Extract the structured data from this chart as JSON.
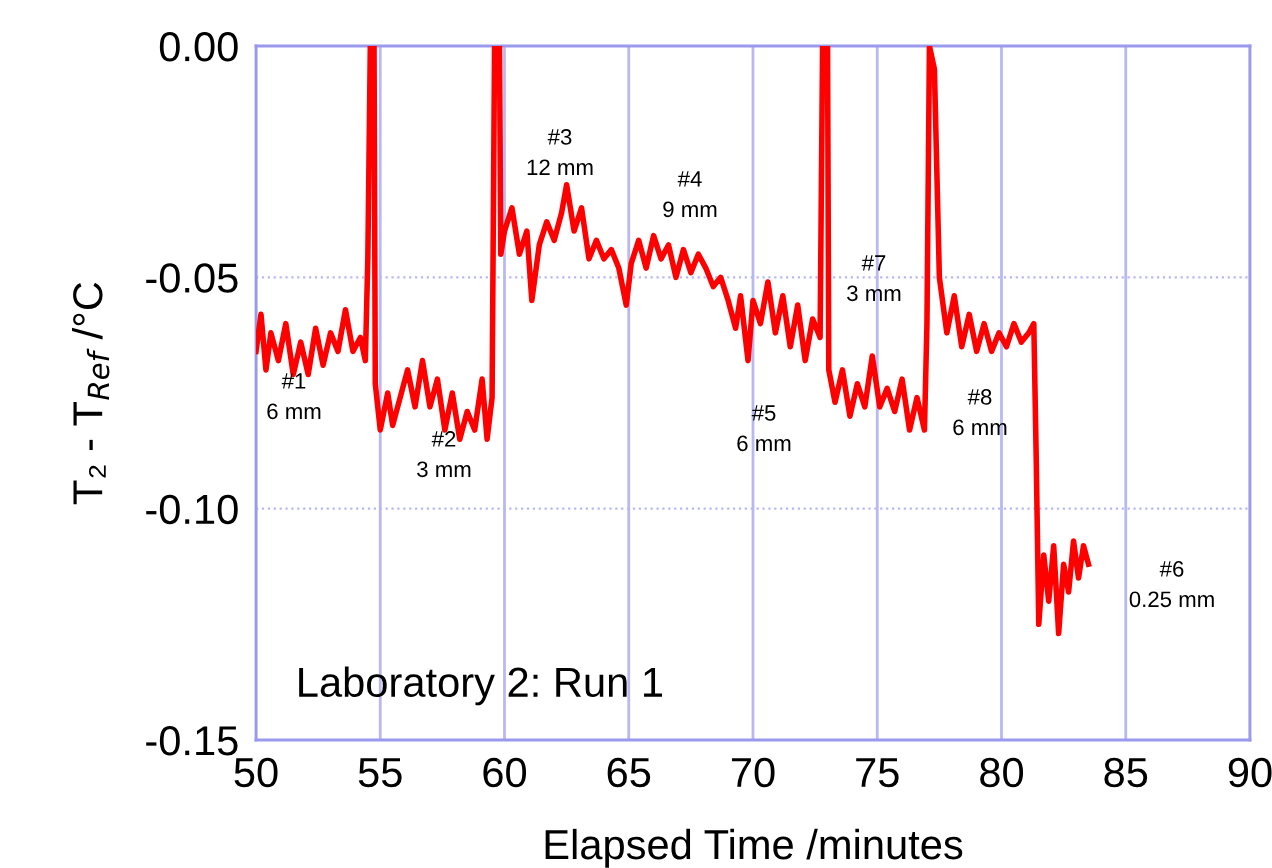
{
  "chart_data": {
    "type": "line",
    "xlabel": "Elapsed Time /minutes",
    "ylabel": "T₂ - T$_{Ref}$ /°C",
    "xlim": [
      50,
      90
    ],
    "xticks": [
      50,
      55,
      60,
      65,
      70,
      75,
      80,
      85,
      90
    ],
    "ylim": [
      -0.15,
      0.0
    ],
    "yticks": [
      {
        "value": -0.15,
        "label": "-0.15"
      },
      {
        "value": -0.1,
        "label": "-0.10"
      },
      {
        "value": -0.05,
        "label": "-0.05"
      },
      {
        "value": 0.0,
        "label": "0.00"
      }
    ],
    "grid": true,
    "legend": false,
    "marker": "none",
    "line_style": "solid",
    "series": [
      {
        "color": "#ff0000",
        "x": [
          50.0,
          50.2,
          50.4,
          50.6,
          50.9,
          51.2,
          51.5,
          51.8,
          52.1,
          52.4,
          52.7,
          53.0,
          53.3,
          53.6,
          53.9,
          54.2,
          54.4,
          54.5,
          54.6,
          54.75,
          54.8,
          55.0,
          55.3,
          55.5,
          55.8,
          56.1,
          56.4,
          56.7,
          57.0,
          57.3,
          57.6,
          57.9,
          58.2,
          58.5,
          58.8,
          59.1,
          59.3,
          59.5,
          59.6,
          59.8,
          59.85,
          60.0,
          60.3,
          60.6,
          60.9,
          61.1,
          61.4,
          61.7,
          62.0,
          62.3,
          62.5,
          62.8,
          63.1,
          63.4,
          63.7,
          64.0,
          64.3,
          64.6,
          64.9,
          65.1,
          65.4,
          65.7,
          66.0,
          66.3,
          66.6,
          66.9,
          67.2,
          67.5,
          67.8,
          68.1,
          68.4,
          68.7,
          69.0,
          69.3,
          69.5,
          69.8,
          70.0,
          70.3,
          70.6,
          70.9,
          71.2,
          71.5,
          71.8,
          72.1,
          72.4,
          72.7,
          72.8,
          73.0,
          73.05,
          73.3,
          73.6,
          73.9,
          74.2,
          74.5,
          74.8,
          75.1,
          75.4,
          75.7,
          76.0,
          76.3,
          76.6,
          76.9,
          77.0,
          77.1,
          77.3,
          77.5,
          77.8,
          78.1,
          78.4,
          78.7,
          79.0,
          79.3,
          79.6,
          79.9,
          80.2,
          80.5,
          80.8,
          81.1,
          81.3,
          81.4,
          81.5,
          81.7,
          81.9,
          82.1,
          82.3,
          82.5,
          82.7,
          82.9,
          83.1,
          83.3,
          83.5
        ],
        "values": [
          -0.066,
          -0.058,
          -0.07,
          -0.062,
          -0.068,
          -0.06,
          -0.071,
          -0.064,
          -0.071,
          -0.061,
          -0.069,
          -0.062,
          -0.066,
          -0.057,
          -0.066,
          -0.063,
          -0.068,
          -0.046,
          0.0,
          0.0,
          -0.073,
          -0.083,
          -0.075,
          -0.082,
          -0.076,
          -0.07,
          -0.078,
          -0.068,
          -0.078,
          -0.072,
          -0.083,
          -0.075,
          -0.085,
          -0.079,
          -0.083,
          -0.072,
          -0.085,
          -0.076,
          0.0,
          0.0,
          -0.045,
          -0.04,
          -0.035,
          -0.045,
          -0.04,
          -0.055,
          -0.043,
          -0.038,
          -0.042,
          -0.036,
          -0.03,
          -0.04,
          -0.035,
          -0.046,
          -0.042,
          -0.046,
          -0.044,
          -0.048,
          -0.056,
          -0.047,
          -0.042,
          -0.048,
          -0.041,
          -0.046,
          -0.043,
          -0.05,
          -0.044,
          -0.049,
          -0.045,
          -0.048,
          -0.052,
          -0.05,
          -0.055,
          -0.061,
          -0.054,
          -0.068,
          -0.055,
          -0.06,
          -0.051,
          -0.062,
          -0.054,
          -0.065,
          -0.056,
          -0.068,
          -0.059,
          -0.063,
          0.0,
          0.0,
          -0.07,
          -0.077,
          -0.07,
          -0.08,
          -0.073,
          -0.078,
          -0.067,
          -0.078,
          -0.074,
          -0.079,
          -0.072,
          -0.083,
          -0.076,
          -0.083,
          -0.06,
          0.0,
          -0.005,
          -0.05,
          -0.062,
          -0.054,
          -0.065,
          -0.058,
          -0.066,
          -0.06,
          -0.066,
          -0.062,
          -0.065,
          -0.06,
          -0.064,
          -0.062,
          -0.06,
          -0.09,
          -0.125,
          -0.11,
          -0.12,
          -0.108,
          -0.127,
          -0.112,
          -0.118,
          -0.107,
          -0.115,
          -0.108,
          -0.112
        ]
      }
    ],
    "annotations": [
      "#1\n6 mm",
      "#2\n3 mm",
      "#3\n12 mm",
      "#4\n9 mm",
      "#5\n6 mm",
      "#7\n3 mm",
      "#8\n6 mm",
      "#6\n0.25 mm",
      "Laboratory 2: Run 1"
    ]
  }
}
